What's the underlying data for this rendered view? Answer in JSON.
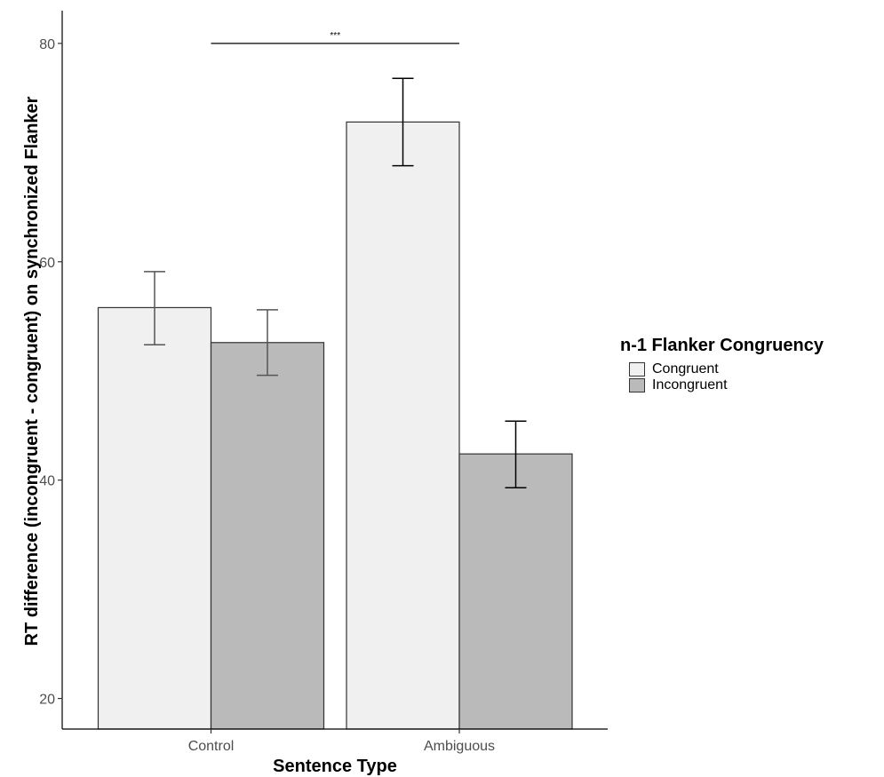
{
  "chart_data": {
    "type": "bar",
    "categories": [
      "Control",
      "Ambiguous"
    ],
    "series": [
      {
        "name": "Congruent",
        "values": [
          55.8,
          72.8
        ],
        "err_low": [
          52.4,
          68.8
        ],
        "err_high": [
          59.1,
          76.8
        ]
      },
      {
        "name": "Incongruent",
        "values": [
          52.6,
          42.4
        ],
        "err_low": [
          49.6,
          39.3
        ],
        "err_high": [
          55.6,
          45.4
        ]
      }
    ],
    "xlabel": "Sentence Type",
    "ylabel": "RT difference (incongruent - congruent) on synchronized Flanker",
    "ylim": [
      17.2,
      83
    ],
    "yticks": [
      20,
      40,
      60,
      80
    ],
    "legend": {
      "title": "n-1 Flanker Congruency",
      "position": "right"
    },
    "annotations": [
      {
        "text": "***",
        "from": "Control",
        "to": "Ambiguous",
        "y": 80
      }
    ],
    "grid": false
  },
  "colors": {
    "Congruent": "#f0f0f0",
    "Incongruent": "#bababa",
    "outline": "#333333"
  }
}
